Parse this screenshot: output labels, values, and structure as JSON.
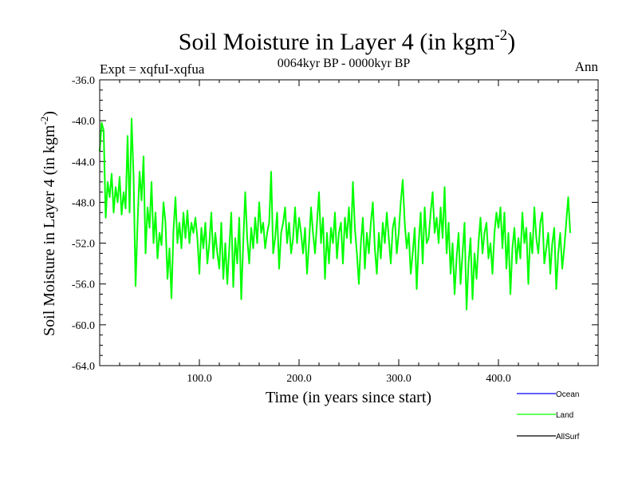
{
  "chart_data": {
    "type": "line",
    "title": "Soil Moisture in Layer 4 (in kgm",
    "title_sup": "-2",
    "title_close": ")",
    "subtitle_left": "Expt = xqfuI-xqfua",
    "subtitle_center": "0064kyr BP - 0000kyr BP",
    "subtitle_right": "Ann",
    "xlabel": "Time (in years since start)",
    "ylabel": "Soil Moisture in Layer 4 (in kgm",
    "ylabel_sup": "-2",
    "ylabel_close": ")",
    "xlim": [
      0,
      500
    ],
    "ylim": [
      -64,
      -36
    ],
    "x_ticks": [
      {
        "value": 100,
        "label": "100.0"
      },
      {
        "value": 200,
        "label": "200.0"
      },
      {
        "value": 300,
        "label": "300.0"
      },
      {
        "value": 400,
        "label": "400.0"
      }
    ],
    "y_ticks": [
      {
        "value": -36,
        "label": "-36.0"
      },
      {
        "value": -40,
        "label": "-40.0"
      },
      {
        "value": -44,
        "label": "-44.0"
      },
      {
        "value": -48,
        "label": "-48.0"
      },
      {
        "value": -52,
        "label": "-52.0"
      },
      {
        "value": -56,
        "label": "-56.0"
      },
      {
        "value": -60,
        "label": "-60.0"
      },
      {
        "value": -64,
        "label": "-64.0"
      }
    ],
    "legend": [
      {
        "name": "Ocean",
        "color": "#0000ff"
      },
      {
        "name": "Land",
        "color": "#00ff00"
      },
      {
        "name": "AllSurf",
        "color": "#000000"
      }
    ],
    "series": [
      {
        "name": "Land",
        "color": "#00ff00",
        "x_start": 0,
        "x_step": 2,
        "values": [
          -43.0,
          -40.2,
          -41.0,
          -49.5,
          -46.0,
          -47.5,
          -45.2,
          -49.0,
          -46.5,
          -48.0,
          -45.5,
          -49.2,
          -47.0,
          -48.6,
          -41.5,
          -49.0,
          -39.8,
          -45.5,
          -56.2,
          -50.0,
          -45.0,
          -47.8,
          -43.5,
          -53.0,
          -48.5,
          -50.5,
          -46.0,
          -52.0,
          -49.0,
          -53.5,
          -51.0,
          -52.2,
          -48.0,
          -50.0,
          -55.5,
          -52.5,
          -57.4,
          -50.8,
          -47.5,
          -52.0,
          -50.0,
          -52.5,
          -49.0,
          -51.5,
          -48.8,
          -52.0,
          -50.0,
          -51.0,
          -49.5,
          -51.5,
          -55.0,
          -50.5,
          -52.5,
          -50.0,
          -54.0,
          -52.0,
          -49.0,
          -53.5,
          -51.0,
          -53.0,
          -54.5,
          -50.0,
          -55.5,
          -52.0,
          -56.0,
          -52.5,
          -49.0,
          -56.3,
          -51.5,
          -54.0,
          -49.5,
          -57.5,
          -52.0,
          -47.0,
          -51.5,
          -54.0,
          -50.5,
          -52.5,
          -49.5,
          -52.0,
          -48.0,
          -51.0,
          -50.0,
          -52.5,
          -51.0,
          -50.0,
          -45.0,
          -53.0,
          -51.5,
          -49.0,
          -54.5,
          -51.0,
          -50.0,
          -48.5,
          -52.0,
          -50.0,
          -53.0,
          -51.5,
          -48.5,
          -52.0,
          -49.5,
          -51.0,
          -53.0,
          -50.5,
          -55.0,
          -52.0,
          -48.5,
          -51.0,
          -53.0,
          -50.0,
          -47.0,
          -52.0,
          -49.5,
          -55.5,
          -51.0,
          -54.0,
          -50.5,
          -52.0,
          -49.0,
          -53.5,
          -51.0,
          -50.0,
          -54.0,
          -49.5,
          -51.5,
          -48.5,
          -52.0,
          -46.0,
          -50.5,
          -53.0,
          -56.0,
          -52.0,
          -49.5,
          -54.5,
          -51.0,
          -53.0,
          -50.0,
          -48.0,
          -52.5,
          -55.0,
          -51.0,
          -53.5,
          -50.0,
          -52.0,
          -49.0,
          -51.5,
          -54.0,
          -50.5,
          -49.5,
          -53.0,
          -51.0,
          -48.0,
          -45.8,
          -50.0,
          -52.5,
          -51.0,
          -55.0,
          -53.0,
          -50.5,
          -56.5,
          -52.0,
          -49.0,
          -54.0,
          -48.5,
          -52.0,
          -51.5,
          -49.0,
          -47.0,
          -51.0,
          -49.5,
          -52.0,
          -48.5,
          -51.5,
          -46.5,
          -53.0,
          -50.0,
          -55.0,
          -52.0,
          -57.0,
          -53.5,
          -51.0,
          -56.0,
          -53.0,
          -50.0,
          -58.5,
          -54.0,
          -51.5,
          -57.5,
          -53.0,
          -55.5,
          -52.0,
          -49.5,
          -53.0,
          -51.0,
          -50.0,
          -53.5,
          -52.0,
          -55.0,
          -51.0,
          -49.0,
          -50.5,
          -48.5,
          -52.5,
          -49.0,
          -54.5,
          -51.0,
          -57.0,
          -52.5,
          -50.5,
          -54.0,
          -51.5,
          -53.5,
          -49.0,
          -52.0,
          -50.5,
          -56.0,
          -51.0,
          -53.0,
          -48.5,
          -51.5,
          -53.0,
          -50.0,
          -49.0,
          -54.0,
          -52.5,
          -51.0,
          -55.0,
          -52.0,
          -50.5,
          -56.5,
          -53.0,
          -51.0,
          -54.5,
          -52.5,
          -50.0,
          -47.5,
          -51.0
        ]
      }
    ]
  }
}
